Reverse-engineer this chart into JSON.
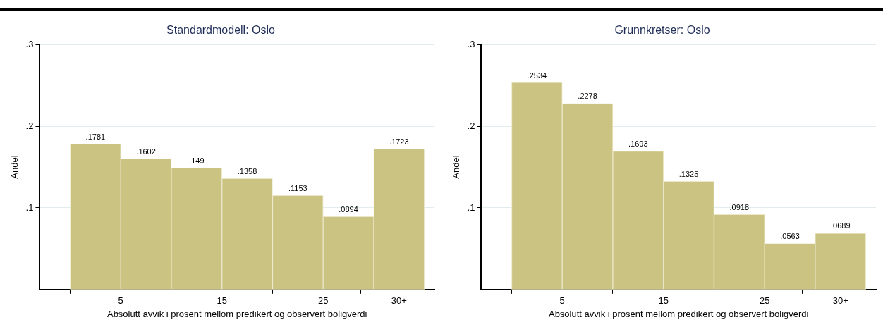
{
  "chart_data": [
    {
      "type": "histogram",
      "title": "Standardmodell: Oslo",
      "xlabel": "Absolutt avvik i prosent mellom predikert og observert boligverdi",
      "ylabel": "Andel",
      "bins": [
        0,
        5,
        10,
        15,
        20,
        25,
        30,
        35
      ],
      "values": [
        0.1781,
        0.1602,
        0.149,
        0.1358,
        0.1153,
        0.0894,
        0.1723
      ],
      "value_labels": [
        ".1781",
        ".1602",
        ".149",
        ".1358",
        ".1153",
        ".0894",
        ".1723"
      ],
      "color": "#cbc382",
      "xlim": [
        -3,
        36
      ],
      "xticks": [
        5,
        15,
        25,
        {
          "value": 32.5,
          "label": "30+"
        }
      ],
      "ylim": [
        0,
        0.3
      ],
      "yticks": [
        {
          "value": 0.1,
          "label": ".1"
        },
        {
          "value": 0.2,
          "label": ".2"
        },
        {
          "value": 0.3,
          "label": ".3"
        }
      ],
      "grid": "y"
    },
    {
      "type": "histogram",
      "title": "Grunnkretser: Oslo",
      "xlabel": "Absolutt avvik i prosent mellom predikert og observert boligverdi",
      "ylabel": "Andel",
      "bins": [
        0,
        5,
        10,
        15,
        20,
        25,
        30,
        35
      ],
      "values": [
        0.2534,
        0.2278,
        0.1693,
        0.1325,
        0.0918,
        0.0563,
        0.0689
      ],
      "value_labels": [
        ".2534",
        ".2278",
        ".1693",
        ".1325",
        ".0918",
        ".0563",
        ".0689"
      ],
      "color": "#cbc382",
      "xlim": [
        -3,
        36
      ],
      "xticks": [
        5,
        15,
        25,
        {
          "value": 32.5,
          "label": "30+"
        }
      ],
      "ylim": [
        0,
        0.3
      ],
      "yticks": [
        {
          "value": 0.1,
          "label": ".1"
        },
        {
          "value": 0.2,
          "label": ".2"
        },
        {
          "value": 0.3,
          "label": ".3"
        }
      ],
      "grid": "y"
    }
  ]
}
